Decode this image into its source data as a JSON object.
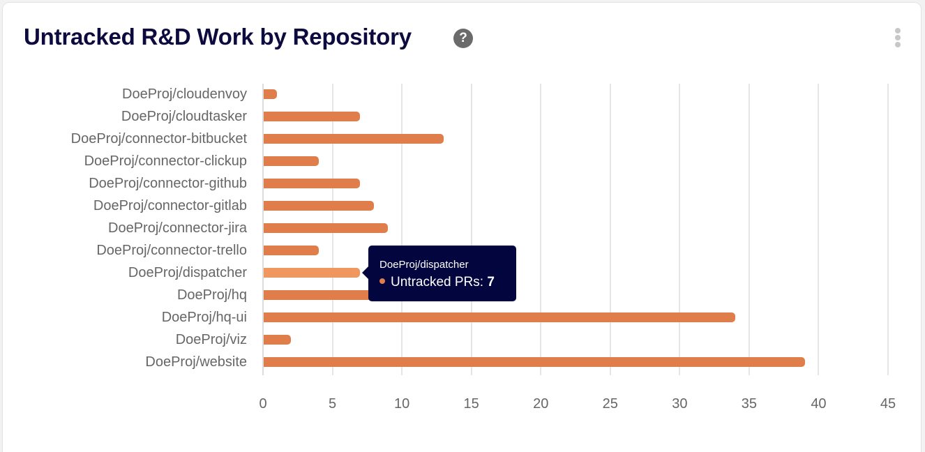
{
  "header": {
    "title": "Untracked R&D Work by Repository",
    "help_icon": "question-circle-icon",
    "menu_icon": "vertical-ellipsis-icon"
  },
  "colors": {
    "bar": "#df7e4a",
    "bar_hover": "#f0965f",
    "title": "#0c0a3e",
    "tooltip_bg": "#03053f"
  },
  "tooltip": {
    "repo": "DoeProj/dispatcher",
    "series_label": "Untracked PRs: ",
    "value": "7"
  },
  "chart_data": {
    "type": "bar",
    "orientation": "horizontal",
    "title": "Untracked R&D Work by Repository",
    "xlabel": "",
    "ylabel": "",
    "categories": [
      "DoeProj/cloudenvoy",
      "DoeProj/cloudtasker",
      "DoeProj/connector-bitbucket",
      "DoeProj/connector-clickup",
      "DoeProj/connector-github",
      "DoeProj/connector-gitlab",
      "DoeProj/connector-jira",
      "DoeProj/connector-trello",
      "DoeProj/dispatcher",
      "DoeProj/hq",
      "DoeProj/hq-ui",
      "DoeProj/viz",
      "DoeProj/website"
    ],
    "series": [
      {
        "name": "Untracked PRs",
        "values": [
          1,
          7,
          13,
          4,
          7,
          8,
          9,
          4,
          7,
          8,
          34,
          2,
          39
        ]
      }
    ],
    "xlim": [
      0,
      45
    ],
    "xticks": [
      "0",
      "5",
      "10",
      "15",
      "20",
      "25",
      "30",
      "35",
      "40",
      "45"
    ],
    "grid": true,
    "legend": "none",
    "highlighted_category": "DoeProj/dispatcher"
  }
}
